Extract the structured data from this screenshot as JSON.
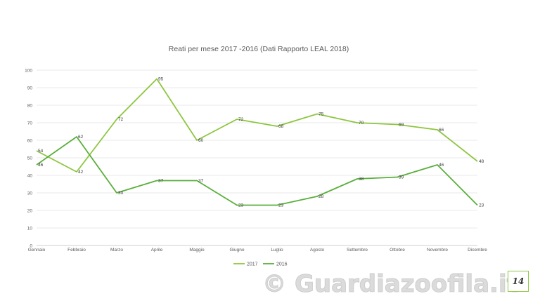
{
  "chart_data": {
    "type": "line",
    "title": "Reati per mese 2017 -2016 (Dati Rapporto LEAL 2018)",
    "categories": [
      "Gennaio",
      "Febbraio",
      "Marzo",
      "Aprile",
      "Maggio",
      "Giugno",
      "Luglio",
      "Agosto",
      "Settembre",
      "Ottobre",
      "Novembre",
      "Dicembre"
    ],
    "ylim": [
      0,
      100
    ],
    "yticks": [
      0,
      10,
      20,
      30,
      40,
      50,
      60,
      70,
      80,
      90,
      100
    ],
    "grid": true,
    "legend_position": "bottom",
    "series": [
      {
        "name": "2017",
        "color": "#8dc63f",
        "values": [
          54,
          42,
          72,
          95,
          60,
          72,
          68,
          75,
          70,
          69,
          66,
          48
        ]
      },
      {
        "name": "2016",
        "color": "#5aaf3c",
        "values": [
          46,
          62,
          30,
          37,
          37,
          23,
          23,
          28,
          38,
          39,
          46,
          23
        ]
      }
    ]
  },
  "watermark": "© Guardiazoofila.it",
  "page_number": "14"
}
